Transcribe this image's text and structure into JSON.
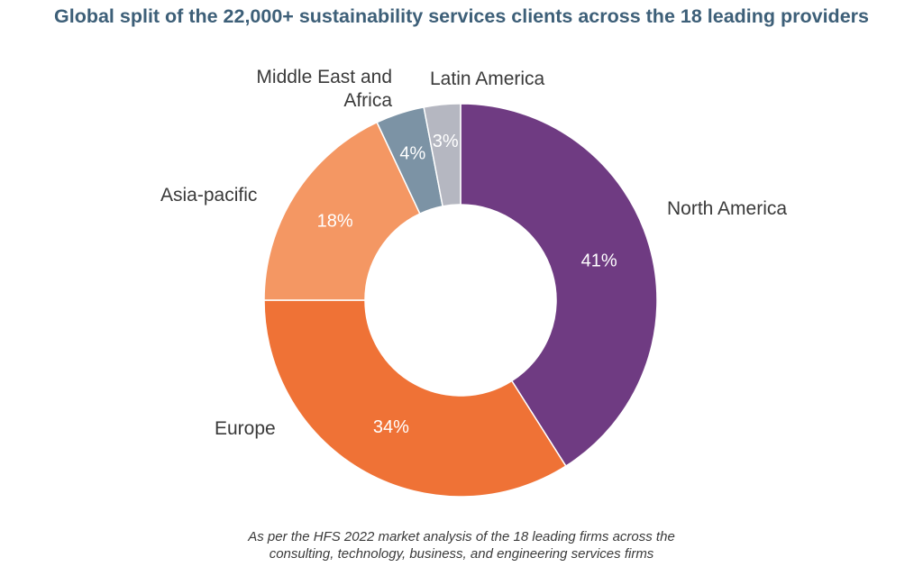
{
  "title": "Global split of the 22,000+ sustainability services clients across the 18 leading providers",
  "footnote": {
    "line1": "As per the HFS 2022 market analysis of the 18 leading firms across the",
    "line2": "consulting, technology, business, and engineering services firms"
  },
  "chart_data": {
    "type": "pie",
    "donut": true,
    "title": "Global split of the 22,000+ sustainability services clients across the 18 leading providers",
    "slices": [
      {
        "label": "North America",
        "value": 41,
        "value_label": "41%",
        "color": "#6f3b82"
      },
      {
        "label": "Europe",
        "value": 34,
        "value_label": "34%",
        "color": "#ef7236"
      },
      {
        "label": "Asia-pacific",
        "value": 18,
        "value_label": "18%",
        "color": "#f49763"
      },
      {
        "label": "Middle East and Africa",
        "value": 4,
        "value_label": "4%",
        "color": "#7c93a5"
      },
      {
        "label": "Latin America",
        "value": 3,
        "value_label": "3%",
        "color": "#b5b7c1"
      }
    ]
  }
}
